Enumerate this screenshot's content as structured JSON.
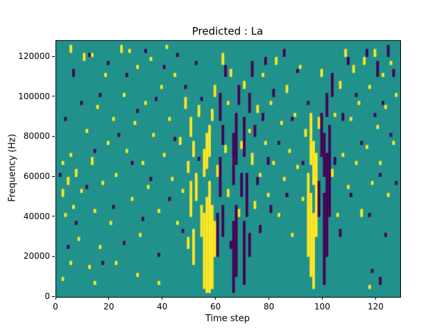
{
  "chart_data": {
    "type": "heatmap",
    "title": "Predicted : La",
    "xlabel": "Time step",
    "ylabel": "Frequency (Hz)",
    "x_range": [
      0,
      129
    ],
    "y_range": [
      0,
      128000
    ],
    "grid": {
      "cols": 129,
      "rows": 64,
      "hz_per_row": 2000
    },
    "legend": "none",
    "xticks": {
      "values": [
        0,
        20,
        40,
        60,
        80,
        100,
        120
      ],
      "labels": [
        "0",
        "20",
        "40",
        "60",
        "80",
        "100",
        "120"
      ]
    },
    "yticks": {
      "values": [
        0,
        20000,
        40000,
        60000,
        80000,
        100000,
        120000
      ],
      "labels": [
        "0",
        "20000",
        "40000",
        "60000",
        "80000",
        "100000",
        "120000"
      ]
    },
    "colors": {
      "background": "#21918c",
      "high": "#fde725",
      "low": "#440154",
      "axis": "#000000"
    },
    "cells_note": "runs are [time_step, freq_row_start, freq_row_end], rows counted bottom-up, each row = 2000 Hz",
    "cells": {
      "yellow": [
        [
          2,
          4,
          4
        ],
        [
          2,
          25,
          26
        ],
        [
          2,
          33,
          33
        ],
        [
          3,
          20,
          20
        ],
        [
          4,
          28,
          29
        ],
        [
          5,
          8,
          8
        ],
        [
          5,
          35,
          35
        ],
        [
          5,
          61,
          62
        ],
        [
          6,
          22,
          22
        ],
        [
          7,
          30,
          31
        ],
        [
          8,
          14,
          14
        ],
        [
          9,
          26,
          26
        ],
        [
          10,
          59,
          60
        ],
        [
          11,
          41,
          41
        ],
        [
          12,
          7,
          7
        ],
        [
          13,
          33,
          34
        ],
        [
          13,
          60,
          60
        ],
        [
          14,
          3,
          3
        ],
        [
          14,
          21,
          21
        ],
        [
          15,
          47,
          47
        ],
        [
          16,
          12,
          12
        ],
        [
          17,
          28,
          28
        ],
        [
          18,
          55,
          55
        ],
        [
          19,
          38,
          38
        ],
        [
          20,
          18,
          18
        ],
        [
          21,
          44,
          44
        ],
        [
          22,
          8,
          8
        ],
        [
          22,
          30,
          30
        ],
        [
          24,
          61,
          62
        ],
        [
          25,
          50,
          50
        ],
        [
          26,
          36,
          36
        ],
        [
          27,
          61,
          61
        ],
        [
          28,
          24,
          24
        ],
        [
          29,
          43,
          43
        ],
        [
          30,
          5,
          5
        ],
        [
          30,
          57,
          57
        ],
        [
          31,
          15,
          15
        ],
        [
          32,
          33,
          33
        ],
        [
          33,
          48,
          48
        ],
        [
          34,
          27,
          27
        ],
        [
          35,
          59,
          59
        ],
        [
          36,
          40,
          40
        ],
        [
          38,
          3,
          3
        ],
        [
          38,
          21,
          21
        ],
        [
          39,
          52,
          52
        ],
        [
          40,
          35,
          35
        ],
        [
          41,
          62,
          62
        ],
        [
          42,
          44,
          44
        ],
        [
          43,
          29,
          29
        ],
        [
          44,
          55,
          55
        ],
        [
          45,
          18,
          18
        ],
        [
          46,
          38,
          39
        ],
        [
          47,
          26,
          26
        ],
        [
          48,
          47,
          49
        ],
        [
          49,
          12,
          14
        ],
        [
          49,
          31,
          33
        ],
        [
          50,
          20,
          28
        ],
        [
          50,
          40,
          44
        ],
        [
          51,
          8,
          16
        ],
        [
          51,
          35,
          38
        ],
        [
          52,
          24,
          30
        ],
        [
          53,
          45,
          47
        ],
        [
          54,
          15,
          22
        ],
        [
          55,
          2,
          20
        ],
        [
          55,
          30,
          36
        ],
        [
          56,
          1,
          24
        ],
        [
          56,
          32,
          40
        ],
        [
          57,
          1,
          28
        ],
        [
          57,
          35,
          42
        ],
        [
          58,
          2,
          22
        ],
        [
          58,
          44,
          46
        ],
        [
          59,
          10,
          18
        ],
        [
          59,
          50,
          52
        ],
        [
          60,
          30,
          32
        ],
        [
          62,
          58,
          60
        ],
        [
          63,
          36,
          37
        ],
        [
          64,
          25,
          26
        ],
        [
          64,
          48,
          48
        ],
        [
          65,
          55,
          56
        ],
        [
          66,
          33,
          34
        ],
        [
          68,
          20,
          21
        ],
        [
          69,
          37,
          38
        ],
        [
          70,
          52,
          53
        ],
        [
          71,
          28,
          28
        ],
        [
          72,
          41,
          41
        ],
        [
          73,
          33,
          35
        ],
        [
          74,
          22,
          23
        ],
        [
          75,
          46,
          47
        ],
        [
          76,
          30,
          30
        ],
        [
          77,
          55,
          55
        ],
        [
          78,
          38,
          38
        ],
        [
          79,
          25,
          25
        ],
        [
          80,
          48,
          48
        ],
        [
          81,
          33,
          33
        ],
        [
          82,
          58,
          59
        ],
        [
          83,
          20,
          20
        ],
        [
          84,
          43,
          43
        ],
        [
          85,
          29,
          29
        ],
        [
          86,
          51,
          52
        ],
        [
          87,
          36,
          36
        ],
        [
          88,
          15,
          15
        ],
        [
          89,
          45,
          45
        ],
        [
          90,
          32,
          32
        ],
        [
          91,
          57,
          57
        ],
        [
          92,
          24,
          24
        ],
        [
          93,
          40,
          41
        ],
        [
          94,
          10,
          30
        ],
        [
          95,
          5,
          25
        ],
        [
          95,
          33,
          45
        ],
        [
          96,
          2,
          20
        ],
        [
          96,
          28,
          38
        ],
        [
          97,
          15,
          35
        ],
        [
          98,
          42,
          44
        ],
        [
          99,
          55,
          56
        ],
        [
          103,
          30,
          31
        ],
        [
          104,
          45,
          45
        ],
        [
          105,
          20,
          20
        ],
        [
          106,
          52,
          53
        ],
        [
          107,
          35,
          35
        ],
        [
          108,
          60,
          61
        ],
        [
          109,
          27,
          27
        ],
        [
          110,
          44,
          44
        ],
        [
          111,
          56,
          57
        ],
        [
          112,
          33,
          33
        ],
        [
          113,
          48,
          48
        ],
        [
          114,
          20,
          21
        ],
        [
          115,
          58,
          59
        ],
        [
          116,
          37,
          37
        ],
        [
          117,
          2,
          2
        ],
        [
          117,
          52,
          52
        ],
        [
          118,
          28,
          28
        ],
        [
          119,
          60,
          61
        ],
        [
          120,
          42,
          42
        ],
        [
          121,
          33,
          33
        ],
        [
          122,
          55,
          55
        ],
        [
          123,
          47,
          47
        ],
        [
          124,
          25,
          25
        ],
        [
          125,
          58,
          58
        ],
        [
          126,
          38,
          38
        ],
        [
          127,
          50,
          50
        ]
      ],
      "purple": [
        [
          1,
          30,
          30
        ],
        [
          3,
          44,
          44
        ],
        [
          4,
          12,
          12
        ],
        [
          6,
          55,
          56
        ],
        [
          7,
          18,
          18
        ],
        [
          9,
          48,
          48
        ],
        [
          11,
          27,
          27
        ],
        [
          12,
          60,
          60
        ],
        [
          14,
          36,
          36
        ],
        [
          16,
          50,
          50
        ],
        [
          17,
          8,
          8
        ],
        [
          19,
          58,
          58
        ],
        [
          21,
          22,
          22
        ],
        [
          23,
          40,
          40
        ],
        [
          25,
          13,
          13
        ],
        [
          26,
          55,
          55
        ],
        [
          28,
          33,
          33
        ],
        [
          30,
          46,
          46
        ],
        [
          32,
          19,
          19
        ],
        [
          33,
          61,
          61
        ],
        [
          35,
          29,
          29
        ],
        [
          37,
          49,
          49
        ],
        [
          38,
          10,
          10
        ],
        [
          40,
          57,
          57
        ],
        [
          42,
          24,
          24
        ],
        [
          44,
          39,
          39
        ],
        [
          45,
          60,
          60
        ],
        [
          47,
          16,
          16
        ],
        [
          48,
          52,
          52
        ],
        [
          52,
          58,
          58
        ],
        [
          53,
          34,
          34
        ],
        [
          54,
          49,
          49
        ],
        [
          60,
          10,
          20
        ],
        [
          61,
          25,
          34
        ],
        [
          61,
          44,
          50
        ],
        [
          62,
          15,
          22
        ],
        [
          62,
          38,
          42
        ],
        [
          63,
          55,
          57
        ],
        [
          65,
          12,
          13
        ],
        [
          66,
          1,
          18
        ],
        [
          66,
          28,
          40
        ],
        [
          67,
          5,
          22
        ],
        [
          67,
          33,
          45
        ],
        [
          68,
          48,
          52
        ],
        [
          69,
          25,
          30
        ],
        [
          70,
          3,
          18
        ],
        [
          70,
          35,
          44
        ],
        [
          71,
          20,
          30
        ],
        [
          72,
          10,
          15
        ],
        [
          72,
          46,
          50
        ],
        [
          73,
          55,
          58
        ],
        [
          74,
          40,
          42
        ],
        [
          75,
          28,
          29
        ],
        [
          76,
          16,
          17
        ],
        [
          77,
          44,
          45
        ],
        [
          78,
          58,
          59
        ],
        [
          79,
          33,
          34
        ],
        [
          80,
          21,
          22
        ],
        [
          81,
          50,
          51
        ],
        [
          83,
          38,
          38
        ],
        [
          85,
          60,
          61
        ],
        [
          86,
          25,
          25
        ],
        [
          88,
          44,
          44
        ],
        [
          90,
          56,
          56
        ],
        [
          92,
          33,
          33
        ],
        [
          94,
          48,
          48
        ],
        [
          98,
          20,
          28
        ],
        [
          99,
          35,
          45
        ],
        [
          100,
          3,
          25
        ],
        [
          100,
          30,
          40
        ],
        [
          101,
          10,
          35
        ],
        [
          101,
          45,
          50
        ],
        [
          102,
          20,
          42
        ],
        [
          103,
          50,
          55
        ],
        [
          104,
          33,
          34
        ],
        [
          106,
          15,
          16
        ],
        [
          107,
          44,
          45
        ],
        [
          109,
          58,
          59
        ],
        [
          110,
          25,
          25
        ],
        [
          112,
          50,
          50
        ],
        [
          114,
          38,
          38
        ],
        [
          116,
          60,
          61
        ],
        [
          117,
          20,
          20
        ],
        [
          118,
          6,
          6
        ],
        [
          119,
          45,
          45
        ],
        [
          120,
          55,
          58
        ],
        [
          121,
          3,
          4
        ],
        [
          121,
          30,
          30
        ],
        [
          122,
          48,
          48
        ],
        [
          123,
          15,
          15
        ],
        [
          124,
          60,
          62
        ],
        [
          125,
          40,
          40
        ],
        [
          126,
          55,
          56
        ],
        [
          127,
          28,
          28
        ]
      ]
    }
  }
}
